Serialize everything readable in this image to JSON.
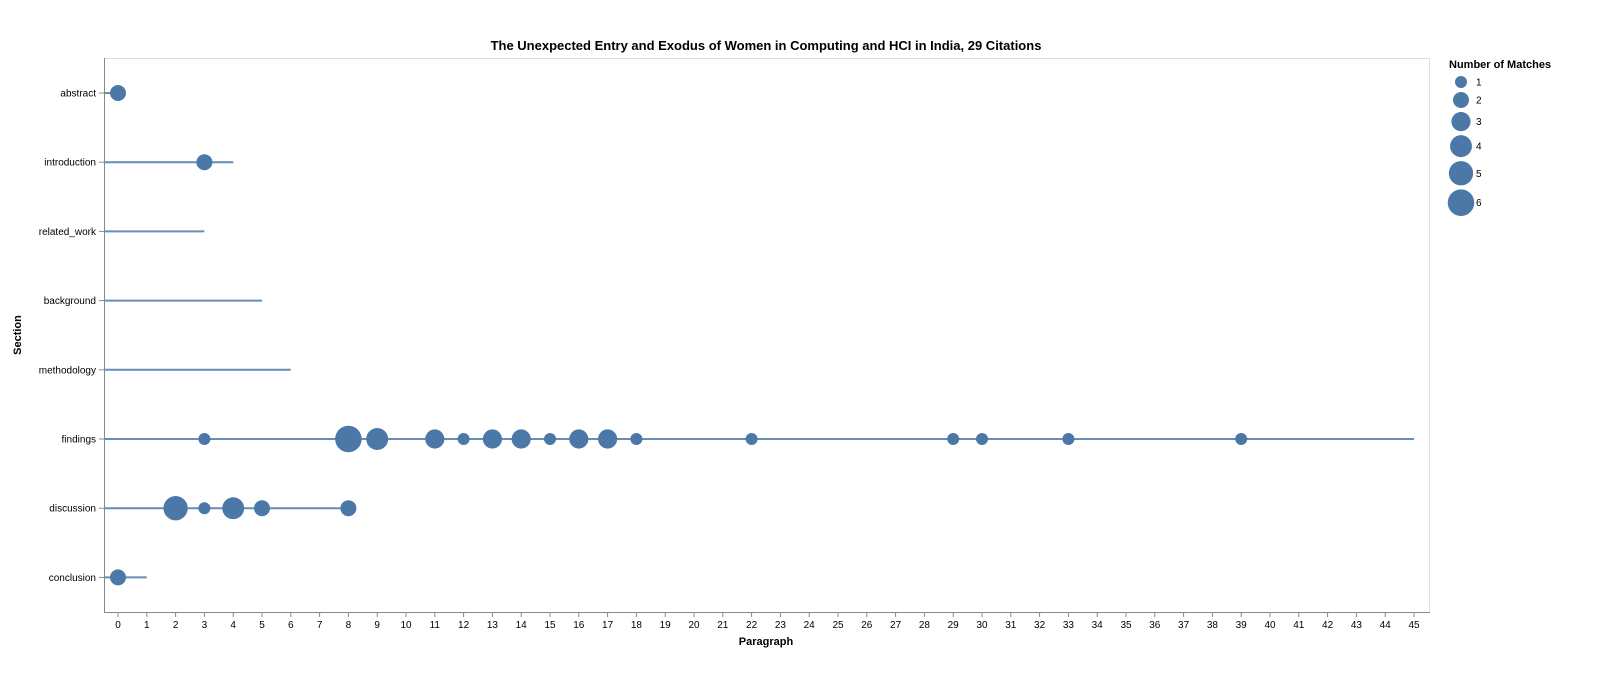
{
  "chart_data": {
    "type": "scatter",
    "title": "The Unexpected Entry and Exodus of Women in Computing and HCI in India, 29 Citations",
    "xlabel": "Paragraph",
    "ylabel": "Section",
    "xlim": [
      0,
      45
    ],
    "x_ticks": [
      "0",
      "1",
      "2",
      "3",
      "4",
      "5",
      "6",
      "7",
      "8",
      "9",
      "10",
      "11",
      "12",
      "13",
      "14",
      "15",
      "16",
      "17",
      "18",
      "19",
      "20",
      "21",
      "22",
      "23",
      "24",
      "25",
      "26",
      "27",
      "28",
      "29",
      "30",
      "31",
      "32",
      "33",
      "34",
      "35",
      "36",
      "37",
      "38",
      "39",
      "40",
      "41",
      "42",
      "43",
      "44",
      "45"
    ],
    "categories": [
      "abstract",
      "introduction",
      "related_work",
      "background",
      "methodology",
      "findings",
      "discussion",
      "conclusion"
    ],
    "grid": false,
    "color": "#4c78a8",
    "section_extents": [
      {
        "section": "abstract",
        "max_paragraph": 0
      },
      {
        "section": "introduction",
        "max_paragraph": 4
      },
      {
        "section": "related_work",
        "max_paragraph": 3
      },
      {
        "section": "background",
        "max_paragraph": 5
      },
      {
        "section": "methodology",
        "max_paragraph": 6
      },
      {
        "section": "findings",
        "max_paragraph": 45
      },
      {
        "section": "discussion",
        "max_paragraph": 8
      },
      {
        "section": "conclusion",
        "max_paragraph": 1
      }
    ],
    "points": [
      {
        "section": "abstract",
        "paragraph": 0,
        "matches": 2
      },
      {
        "section": "introduction",
        "paragraph": 3,
        "matches": 2
      },
      {
        "section": "findings",
        "paragraph": 3,
        "matches": 1
      },
      {
        "section": "findings",
        "paragraph": 8,
        "matches": 6
      },
      {
        "section": "findings",
        "paragraph": 9,
        "matches": 4
      },
      {
        "section": "findings",
        "paragraph": 11,
        "matches": 3
      },
      {
        "section": "findings",
        "paragraph": 12,
        "matches": 1
      },
      {
        "section": "findings",
        "paragraph": 13,
        "matches": 3
      },
      {
        "section": "findings",
        "paragraph": 14,
        "matches": 3
      },
      {
        "section": "findings",
        "paragraph": 15,
        "matches": 1
      },
      {
        "section": "findings",
        "paragraph": 16,
        "matches": 3
      },
      {
        "section": "findings",
        "paragraph": 17,
        "matches": 3
      },
      {
        "section": "findings",
        "paragraph": 18,
        "matches": 1
      },
      {
        "section": "findings",
        "paragraph": 22,
        "matches": 1
      },
      {
        "section": "findings",
        "paragraph": 29,
        "matches": 1
      },
      {
        "section": "findings",
        "paragraph": 30,
        "matches": 1
      },
      {
        "section": "findings",
        "paragraph": 33,
        "matches": 1
      },
      {
        "section": "findings",
        "paragraph": 39,
        "matches": 1
      },
      {
        "section": "discussion",
        "paragraph": 2,
        "matches": 5
      },
      {
        "section": "discussion",
        "paragraph": 3,
        "matches": 1
      },
      {
        "section": "discussion",
        "paragraph": 4,
        "matches": 4
      },
      {
        "section": "discussion",
        "paragraph": 5,
        "matches": 2
      },
      {
        "section": "discussion",
        "paragraph": 8,
        "matches": 2
      },
      {
        "section": "conclusion",
        "paragraph": 0,
        "matches": 2
      }
    ],
    "legend": {
      "title": "Number of Matches",
      "placement": "top-right",
      "entries": [
        {
          "label": "1",
          "value": 1
        },
        {
          "label": "2",
          "value": 2
        },
        {
          "label": "3",
          "value": 3
        },
        {
          "label": "4",
          "value": 4
        },
        {
          "label": "5",
          "value": 5
        },
        {
          "label": "6",
          "value": 6
        }
      ]
    }
  }
}
